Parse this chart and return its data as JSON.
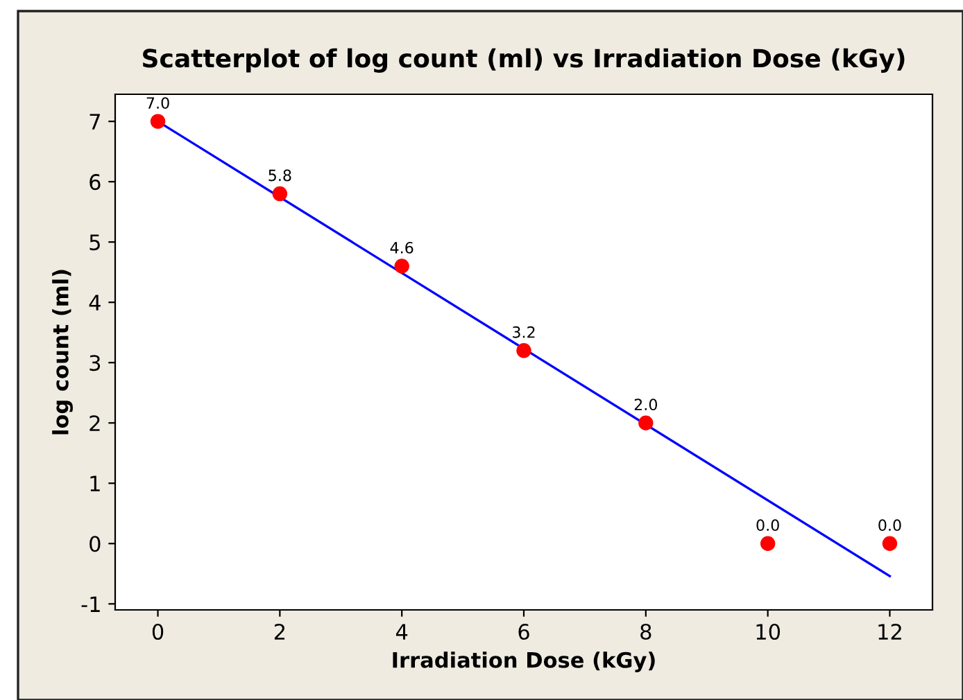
{
  "chart_data": {
    "type": "scatter",
    "title": "Scatterplot of log count (ml) vs Irradiation Dose (kGy)",
    "xlabel": "Irradiation Dose (kGy)",
    "ylabel": "log count (ml)",
    "series": [
      {
        "color": "#ff0000",
        "marker": "circle",
        "x": [
          0,
          2,
          4,
          6,
          8,
          10,
          12
        ],
        "values": [
          7.0,
          5.8,
          4.6,
          3.2,
          2.0,
          0.0,
          0.0
        ],
        "value_labels": [
          "7.0",
          "5.8",
          "4.6",
          "3.2",
          "2.0",
          "0.0",
          "0.0"
        ]
      },
      {
        "type": "line",
        "color": "#0000ff",
        "marker": "none",
        "line_style": "solid",
        "x": [
          0,
          12
        ],
        "values": [
          7.0,
          -0.54
        ]
      }
    ],
    "xlim": [
      -0.7,
      12.7
    ],
    "xticks": [
      0,
      2,
      4,
      6,
      8,
      10,
      12
    ],
    "ylim": [
      -1.1,
      7.45
    ],
    "yticks": [
      -1,
      0,
      1,
      2,
      3,
      4,
      5,
      6,
      7
    ],
    "grid": false,
    "legend": false
  }
}
